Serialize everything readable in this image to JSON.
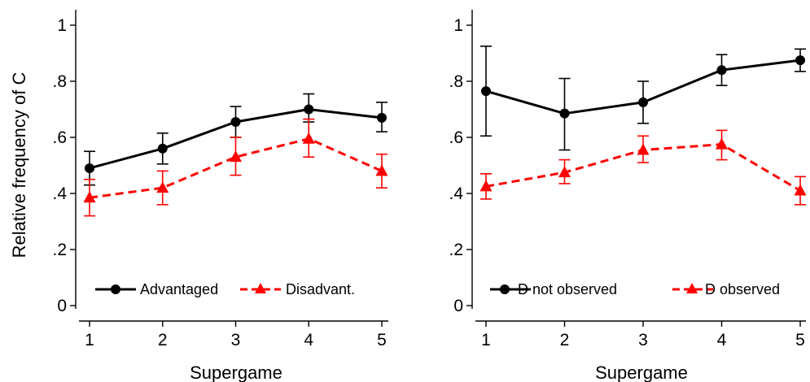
{
  "chart_data": [
    {
      "type": "line",
      "xlabel": "Supergame",
      "ylabel": "Relative frequency of C",
      "x": [
        1,
        2,
        3,
        4,
        5
      ],
      "xlim": [
        1,
        5
      ],
      "ylim": [
        0,
        1
      ],
      "yticks": [
        {
          "value": 0,
          "label": "0"
        },
        {
          "value": 0.2,
          "label": ".2"
        },
        {
          "value": 0.4,
          "label": ".4"
        },
        {
          "value": 0.6,
          "label": ".6"
        },
        {
          "value": 0.8,
          "label": ".8"
        },
        {
          "value": 1,
          "label": "1"
        }
      ],
      "xticks": [
        {
          "value": 1,
          "label": "1"
        },
        {
          "value": 2,
          "label": "2"
        },
        {
          "value": 3,
          "label": "3"
        },
        {
          "value": 4,
          "label": "4"
        },
        {
          "value": 5,
          "label": "5"
        }
      ],
      "legend_position": "bottom",
      "series": [
        {
          "name": "Advantaged",
          "color": "#000000",
          "marker": "circle",
          "line_style": "solid",
          "values": [
            0.49,
            0.56,
            0.655,
            0.7,
            0.67
          ],
          "ci_low": [
            0.43,
            0.505,
            0.6,
            0.655,
            0.62
          ],
          "ci_high": [
            0.55,
            0.615,
            0.71,
            0.755,
            0.725
          ]
        },
        {
          "name": "Disadvant.",
          "color": "#ff0000",
          "marker": "triangle",
          "line_style": "dashed",
          "values": [
            0.385,
            0.42,
            0.53,
            0.595,
            0.48
          ],
          "ci_low": [
            0.32,
            0.36,
            0.465,
            0.53,
            0.42
          ],
          "ci_high": [
            0.45,
            0.48,
            0.6,
            0.665,
            0.54
          ]
        }
      ]
    },
    {
      "type": "line",
      "xlabel": "Supergame",
      "ylabel": "",
      "x": [
        1,
        2,
        3,
        4,
        5
      ],
      "xlim": [
        1,
        5
      ],
      "ylim": [
        0,
        1
      ],
      "yticks": [
        {
          "value": 0,
          "label": "0"
        },
        {
          "value": 0.2,
          "label": ".2"
        },
        {
          "value": 0.4,
          "label": ".4"
        },
        {
          "value": 0.6,
          "label": ".6"
        },
        {
          "value": 0.8,
          "label": ".8"
        },
        {
          "value": 1,
          "label": "1"
        }
      ],
      "xticks": [
        {
          "value": 1,
          "label": "1"
        },
        {
          "value": 2,
          "label": "2"
        },
        {
          "value": 3,
          "label": "3"
        },
        {
          "value": 4,
          "label": "4"
        },
        {
          "value": 5,
          "label": "5"
        }
      ],
      "legend_position": "bottom",
      "series": [
        {
          "name": "D not observed",
          "color": "#000000",
          "marker": "circle",
          "line_style": "solid",
          "values": [
            0.765,
            0.685,
            0.725,
            0.84,
            0.875
          ],
          "ci_low": [
            0.605,
            0.555,
            0.65,
            0.785,
            0.835
          ],
          "ci_high": [
            0.925,
            0.81,
            0.8,
            0.895,
            0.915
          ]
        },
        {
          "name": "D observed",
          "color": "#ff0000",
          "marker": "triangle",
          "line_style": "dashed",
          "values": [
            0.425,
            0.475,
            0.555,
            0.575,
            0.41
          ],
          "ci_low": [
            0.38,
            0.435,
            0.51,
            0.52,
            0.36
          ],
          "ci_high": [
            0.47,
            0.52,
            0.605,
            0.625,
            0.46
          ]
        }
      ]
    }
  ]
}
